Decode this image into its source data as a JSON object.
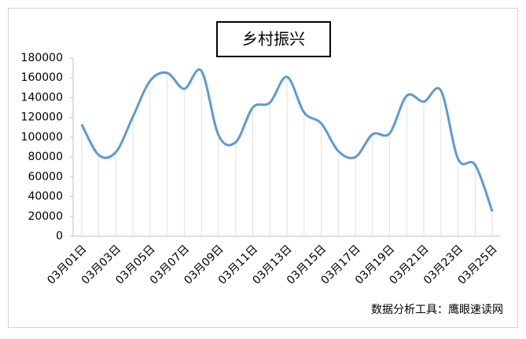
{
  "chart_data": {
    "type": "line",
    "title": "乡村振兴",
    "categories": [
      "03月01日",
      null,
      "03月03日",
      null,
      "03月05日",
      null,
      "03月07日",
      null,
      "03月09日",
      null,
      "03月11日",
      null,
      "03月13日",
      null,
      "03月15日",
      null,
      "03月17日",
      null,
      "03月19日",
      null,
      "03月21日",
      null,
      "03月23日",
      null,
      "03月25日"
    ],
    "values": [
      113000,
      82000,
      85000,
      121000,
      157000,
      165000,
      149000,
      167000,
      102000,
      95000,
      130000,
      135000,
      161000,
      125000,
      114000,
      86000,
      80000,
      103000,
      104000,
      142000,
      136000,
      147000,
      78000,
      72000,
      25000
    ],
    "color": "#5b9bd5",
    "ylim": [
      0,
      180000
    ],
    "yticks": [
      0,
      20000,
      40000,
      60000,
      80000,
      100000,
      120000,
      140000,
      160000,
      180000
    ],
    "smooth": true,
    "annotation": "数据分析工具：鹰眼速读网"
  }
}
